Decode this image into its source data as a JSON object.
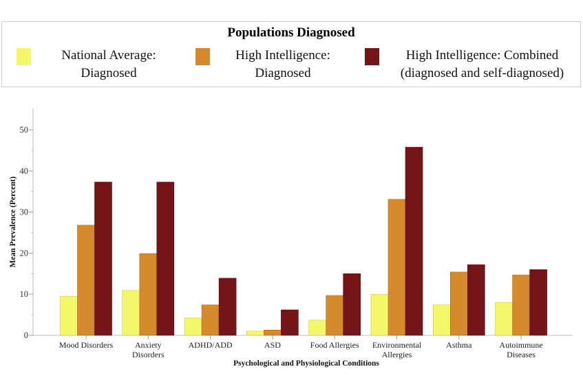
{
  "legend": {
    "title": "Populations Diagnosed",
    "items": [
      {
        "line1": "National Average:",
        "line2": "Diagnosed",
        "color": "#f5f76a"
      },
      {
        "line1": "High Intelligence:",
        "line2": "Diagnosed",
        "color": "#d68a2e"
      },
      {
        "line1": "High Intelligence: Combined",
        "line2": "(diagnosed and self-diagnosed)",
        "color": "#741619"
      }
    ]
  },
  "chart_data": {
    "type": "bar",
    "title": "Populations Diagnosed",
    "xlabel": "Psychological and Physiological Conditions",
    "ylabel": "Mean Prevalence (Percent)",
    "ylim": [
      0,
      55
    ],
    "yticks": [
      0,
      10,
      20,
      30,
      40,
      50
    ],
    "grid": false,
    "legend_position": "top",
    "categories": [
      [
        "Mood Disorders"
      ],
      [
        "Anxiety",
        "Disorders"
      ],
      [
        "ADHD/ADD"
      ],
      [
        "ASD"
      ],
      [
        "Food Allergies"
      ],
      [
        "Environmental",
        "Allergies"
      ],
      [
        "Asthma"
      ],
      [
        "Autoimmune",
        "Diseases"
      ]
    ],
    "series": [
      {
        "name": "National Average: Diagnosed",
        "color": "#f5f76a",
        "values": [
          9.5,
          10.9,
          4.2,
          1.0,
          3.7,
          10.0,
          7.4,
          8.0
        ]
      },
      {
        "name": "High Intelligence: Diagnosed",
        "color": "#d68a2e",
        "values": [
          26.8,
          19.9,
          7.4,
          1.3,
          9.7,
          33.1,
          15.4,
          14.7
        ]
      },
      {
        "name": "High Intelligence: Combined (diagnosed and self-diagnosed)",
        "color": "#741619",
        "values": [
          37.3,
          37.3,
          13.9,
          6.2,
          15.0,
          45.8,
          17.2,
          16.0
        ]
      }
    ]
  }
}
